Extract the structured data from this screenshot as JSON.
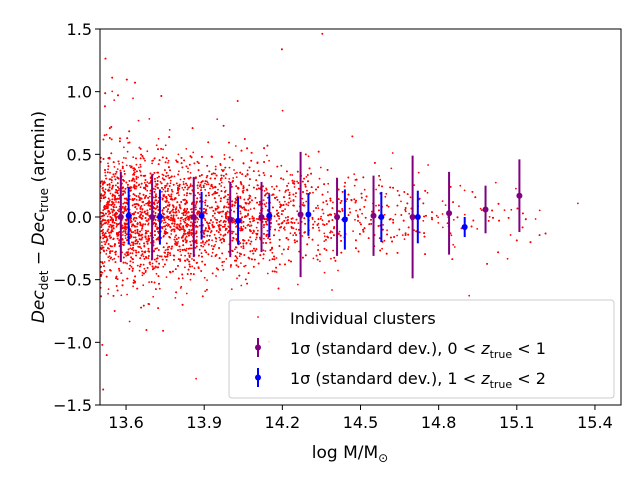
{
  "chart_data": {
    "type": "scatter",
    "title": "",
    "xlabel": "log M/M",
    "xlabel_sub": "⊙",
    "ylabel_parts": {
      "a": "Dec",
      "a_sub": "det",
      "minus": " − ",
      "b": "Dec",
      "b_sub": "true",
      "units": " (arcmin)"
    },
    "xlim": [
      13.5,
      15.5
    ],
    "ylim": [
      -1.5,
      1.5
    ],
    "xticks": [
      "13.6",
      "13.9",
      "14.2",
      "14.5",
      "14.8",
      "15.1",
      "15.4"
    ],
    "xtick_values": [
      13.6,
      13.9,
      14.2,
      14.5,
      14.8,
      15.1,
      15.4
    ],
    "yticks": [
      "1.5",
      "1.0",
      "0.5",
      "0.0",
      "−0.5",
      "−1.0",
      "−1.5"
    ],
    "ytick_values": [
      1.5,
      1.0,
      0.5,
      0.0,
      -0.5,
      -1.0,
      -1.5
    ],
    "grid": false,
    "legend_position": "bottom-right",
    "scatter_color": "#ff0000",
    "legend": [
      {
        "label": "Individual clusters",
        "marker": "dot",
        "color": "#ff0000"
      },
      {
        "label_pre": "1σ (standard dev.), 0 < ",
        "label_var": "z",
        "label_sub": "true",
        "label_post": " < 1",
        "marker": "errorbar",
        "color": "#800080"
      },
      {
        "label_pre": "1σ (standard dev.), 1 < ",
        "label_var": "z",
        "label_sub": "true",
        "label_post": " < 2",
        "marker": "errorbar",
        "color": "#0000ff"
      }
    ],
    "series": [
      {
        "name": "1σ (standard dev.), 0 < z_true < 1",
        "color": "#800080",
        "points": [
          {
            "x": 13.58,
            "y": 0.0,
            "err": 0.36
          },
          {
            "x": 13.7,
            "y": 0.0,
            "err": 0.34
          },
          {
            "x": 13.86,
            "y": 0.0,
            "err": 0.32
          },
          {
            "x": 14.0,
            "y": -0.02,
            "err": 0.3
          },
          {
            "x": 14.12,
            "y": 0.0,
            "err": 0.28
          },
          {
            "x": 14.27,
            "y": 0.02,
            "err": 0.5
          },
          {
            "x": 14.41,
            "y": 0.0,
            "err": 0.31
          },
          {
            "x": 14.55,
            "y": 0.01,
            "err": 0.32
          },
          {
            "x": 14.7,
            "y": 0.0,
            "err": 0.49
          },
          {
            "x": 14.84,
            "y": 0.03,
            "err": 0.33
          },
          {
            "x": 14.98,
            "y": 0.06,
            "err": 0.19
          },
          {
            "x": 15.11,
            "y": 0.17,
            "err": 0.29
          }
        ]
      },
      {
        "name": "1σ (standard dev.), 1 < z_true < 2",
        "color": "#0000ff",
        "points": [
          {
            "x": 13.61,
            "y": 0.01,
            "err": 0.23
          },
          {
            "x": 13.73,
            "y": 0.0,
            "err": 0.22
          },
          {
            "x": 13.89,
            "y": 0.01,
            "err": 0.19
          },
          {
            "x": 14.03,
            "y": -0.03,
            "err": 0.19
          },
          {
            "x": 14.15,
            "y": 0.01,
            "err": 0.17
          },
          {
            "x": 14.3,
            "y": 0.02,
            "err": 0.17
          },
          {
            "x": 14.44,
            "y": -0.02,
            "err": 0.24
          },
          {
            "x": 14.58,
            "y": 0.0,
            "err": 0.2
          },
          {
            "x": 14.72,
            "y": 0.0,
            "err": 0.21
          },
          {
            "x": 14.9,
            "y": -0.08,
            "err": 0.08
          }
        ]
      }
    ]
  }
}
